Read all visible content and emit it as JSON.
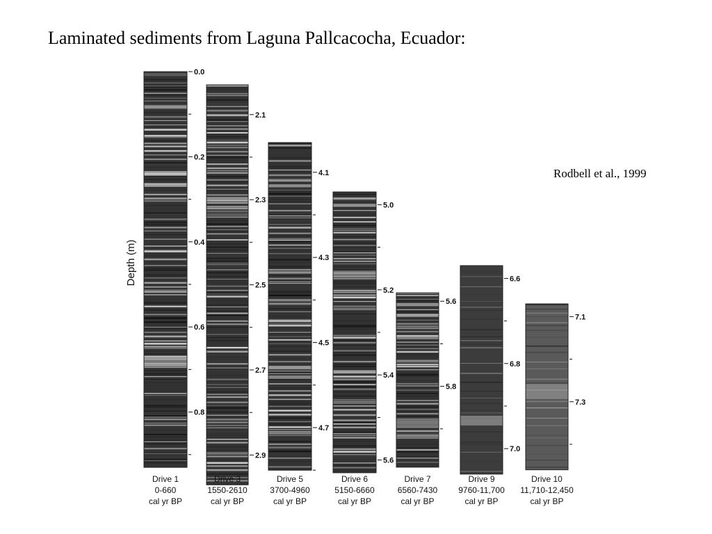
{
  "title": "Laminated sediments from Laguna Pallcacocha, Ecuador:",
  "citation": "Rodbell et al., 1999",
  "figure": {
    "y_axis_label": "Depth (m)",
    "drives": [
      {
        "name": "Drive 1",
        "age_range": "0-660",
        "units": "cal yr BP",
        "top_depth_m": 0.0,
        "bottom_depth_m": 0.93,
        "depth_labels": [
          "0.0",
          "0.2",
          "0.4",
          "0.6",
          "0.8"
        ],
        "tone": "dark-laminated"
      },
      {
        "name": "Drive 3",
        "age_range": "1550-2610",
        "units": "cal yr BP",
        "top_depth_m": 2.03,
        "bottom_depth_m": 2.97,
        "depth_labels": [
          "2.1",
          "2.3",
          "2.5",
          "2.7",
          "2.9"
        ],
        "tone": "dark-laminated"
      },
      {
        "name": "Drive 5",
        "age_range": "3700-4960",
        "units": "cal yr BP",
        "top_depth_m": 4.03,
        "bottom_depth_m": 4.8,
        "depth_labels": [
          "4.1",
          "4.3",
          "4.5",
          "4.7"
        ],
        "tone": "dark-laminated"
      },
      {
        "name": "Drive 6",
        "age_range": "5150-6660",
        "units": "cal yr BP",
        "top_depth_m": 4.97,
        "bottom_depth_m": 5.63,
        "depth_labels": [
          "5.0",
          "5.2",
          "5.4",
          "5.6"
        ],
        "tone": "dark-laminated"
      },
      {
        "name": "Drive 7",
        "age_range": "6560-7430",
        "units": "cal yr BP",
        "top_depth_m": 5.58,
        "bottom_depth_m": 5.99,
        "depth_labels": [
          "5.6",
          "5.8"
        ],
        "tone": "dark-laminated"
      },
      {
        "name": "Drive 9",
        "age_range": "9760-11,700",
        "units": "cal yr BP",
        "top_depth_m": 6.57,
        "bottom_depth_m": 7.06,
        "depth_labels": [
          "6.6",
          "6.8",
          "7.0"
        ],
        "tone": "dark-massive"
      },
      {
        "name": "Drive 10",
        "age_range": "11,710-12,450",
        "units": "cal yr BP",
        "top_depth_m": 7.07,
        "bottom_depth_m": 7.46,
        "depth_labels": [
          "7.1",
          "7.3"
        ],
        "tone": "grey-massive"
      }
    ]
  }
}
